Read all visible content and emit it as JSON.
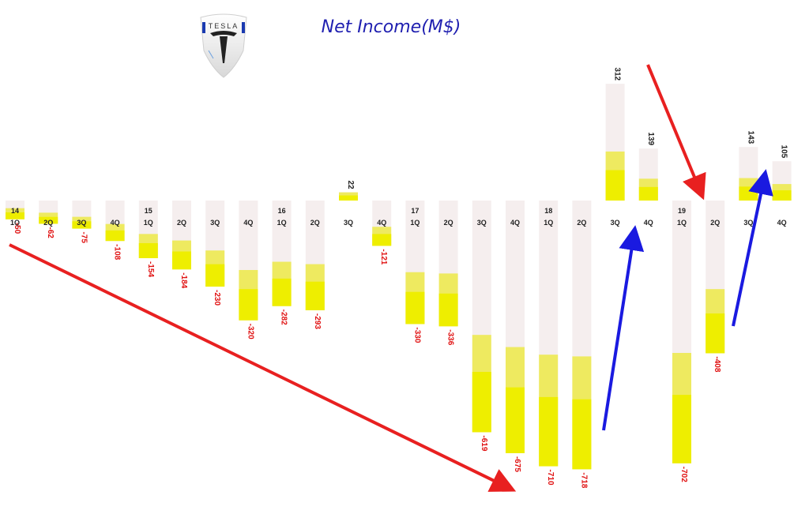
{
  "chart_data": {
    "type": "bar",
    "title": "Net Income(M$)",
    "xlabel": "",
    "ylabel": "",
    "ylim": [
      -780,
      330
    ],
    "grid": false,
    "categories": [
      "1Q",
      "2Q",
      "3Q",
      "4Q",
      "1Q",
      "2Q",
      "3Q",
      "4Q",
      "1Q",
      "2Q",
      "3Q",
      "4Q",
      "1Q",
      "2Q",
      "3Q",
      "4Q",
      "1Q",
      "2Q",
      "3Q",
      "4Q",
      "1Q",
      "2Q",
      "3Q",
      "4Q"
    ],
    "year_labels": [
      {
        "index": 0,
        "label": "14"
      },
      {
        "index": 4,
        "label": "15"
      },
      {
        "index": 8,
        "label": "16"
      },
      {
        "index": 12,
        "label": "17"
      },
      {
        "index": 16,
        "label": "18"
      },
      {
        "index": 20,
        "label": "19"
      }
    ],
    "values": [
      -50,
      -62,
      -75,
      -108,
      -154,
      -184,
      -230,
      -320,
      -282,
      -293,
      22,
      -121,
      -330,
      -336,
      -619,
      -675,
      -710,
      -718,
      312,
      139,
      -702,
      -408,
      143,
      105
    ],
    "value_labels": [
      "-50",
      "-62",
      "-75",
      "-108",
      "-154",
      "-184",
      "-230",
      "-320",
      "-282",
      "-293",
      "22",
      "-121",
      "-330",
      "-336",
      "-619",
      "-675",
      "-710",
      "-718",
      "312",
      "139",
      "-702",
      "-408",
      "143",
      "105"
    ],
    "colors": {
      "bar_top": "#f5eeee",
      "bar_mid": "#eeea60",
      "bar_base": "#eeee00",
      "negative_label": "#e01010",
      "positive_label": "#222222",
      "title": "#1f1fb0",
      "arrow_red": "#e82020",
      "arrow_blue": "#1a1ae0"
    }
  },
  "logo": {
    "name": "tesla-logo",
    "text": "TESLA"
  }
}
